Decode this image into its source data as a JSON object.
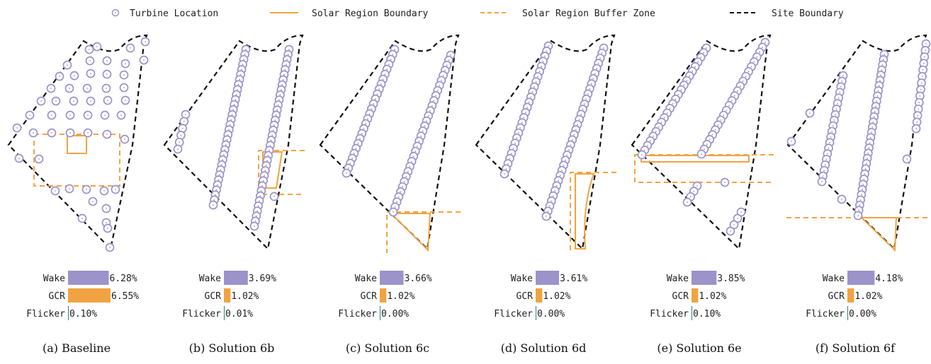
{
  "colors": {
    "turbine": "#9b93c9",
    "solar": "#f2a341",
    "site": "#111111",
    "wake_bar": "#9b93c9",
    "gcr_bar": "#f2a341",
    "flicker_bar": "#2f7f7f"
  },
  "legend": [
    {
      "key": "turbine",
      "label": "Turbine Location"
    },
    {
      "key": "solar_boundary",
      "label": "Solar Region Boundary"
    },
    {
      "key": "buffer",
      "label": "Solar Region Buffer Zone"
    },
    {
      "key": "site",
      "label": "Site Boundary"
    }
  ],
  "metric_labels": [
    "Wake",
    "GCR",
    "Flicker"
  ],
  "panels": [
    {
      "caption": "(a) Baseline",
      "metrics": [
        {
          "value": 6.28,
          "text": "6.28%"
        },
        {
          "value": 6.55,
          "text": "6.55%"
        },
        {
          "value": 0.1,
          "text": "0.10%"
        }
      ]
    },
    {
      "caption": "(b) Solution 6b",
      "metrics": [
        {
          "value": 3.69,
          "text": "3.69%"
        },
        {
          "value": 1.02,
          "text": "1.02%"
        },
        {
          "value": 0.01,
          "text": "0.01%"
        }
      ]
    },
    {
      "caption": "(c) Solution 6c",
      "metrics": [
        {
          "value": 3.66,
          "text": "3.66%"
        },
        {
          "value": 1.02,
          "text": "1.02%"
        },
        {
          "value": 0.0,
          "text": "0.00%"
        }
      ]
    },
    {
      "caption": "(d) Solution 6d",
      "metrics": [
        {
          "value": 3.61,
          "text": "3.61%"
        },
        {
          "value": 1.02,
          "text": "1.02%"
        },
        {
          "value": 0.0,
          "text": "0.00%"
        }
      ]
    },
    {
      "caption": "(e) Solution 6e",
      "metrics": [
        {
          "value": 3.85,
          "text": "3.85%"
        },
        {
          "value": 1.02,
          "text": "1.02%"
        },
        {
          "value": 0.1,
          "text": "0.10%"
        }
      ]
    },
    {
      "caption": "(f) Solution 6f",
      "metrics": [
        {
          "value": 4.18,
          "text": "4.18%"
        },
        {
          "value": 1.02,
          "text": "1.02%"
        },
        {
          "value": 0.0,
          "text": "0.00%"
        }
      ]
    }
  ]
}
